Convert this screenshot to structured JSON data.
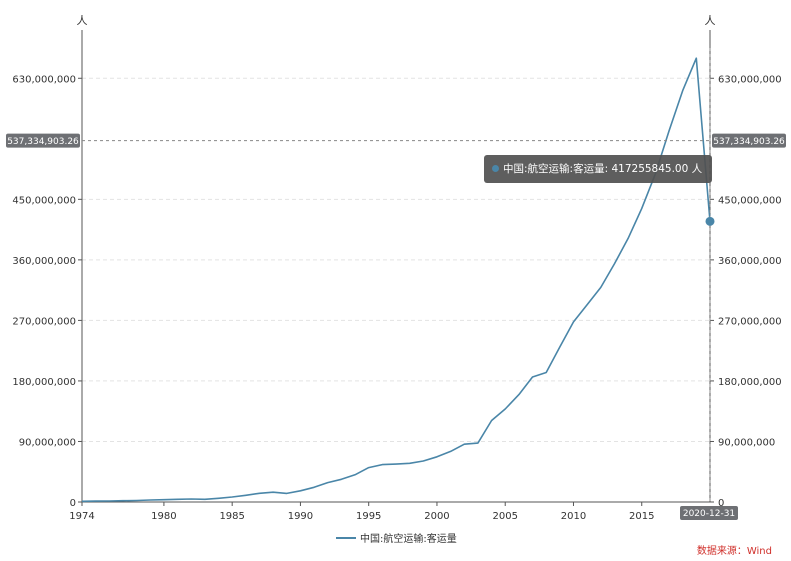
{
  "chart_data": {
    "type": "line",
    "y_unit_left": "人",
    "y_unit_right": "人",
    "ylim": [
      0,
      675000000
    ],
    "y_ticks": [
      0,
      90000000,
      180000000,
      270000000,
      360000000,
      450000000,
      630000000
    ],
    "y_tick_labels": [
      "0",
      "90,000,000",
      "180,000,000",
      "270,000,000",
      "360,000,000",
      "450,000,000",
      "630,000,000"
    ],
    "x_tick_labels": [
      "1974",
      "1980",
      "1985",
      "1990",
      "1995",
      "2000",
      "2005",
      "2010",
      "2015"
    ],
    "x_tick_values": [
      1974,
      1980,
      1985,
      1990,
      1995,
      2000,
      2005,
      2010,
      2015
    ],
    "xlim": [
      1974,
      2020
    ],
    "crosshair_value": 537334903.26,
    "crosshair_label": "537,334,903.26",
    "x_pointer_label": "2020-12-31",
    "grid": true,
    "legend_position": "bottom-center",
    "series": [
      {
        "name": "中国:航空运输:客运量",
        "color": "#4a86a8",
        "x": [
          1974,
          1975,
          1976,
          1977,
          1978,
          1979,
          1980,
          1981,
          1982,
          1983,
          1984,
          1985,
          1986,
          1987,
          1988,
          1989,
          1990,
          1991,
          1992,
          1993,
          1994,
          1995,
          1996,
          1997,
          1998,
          1999,
          2000,
          2001,
          2002,
          2003,
          2004,
          2005,
          2006,
          2007,
          2008,
          2009,
          2010,
          2011,
          2012,
          2013,
          2014,
          2015,
          2016,
          2017,
          2018,
          2019,
          2020
        ],
        "values": [
          1000000,
          1400000,
          1500000,
          1900000,
          2300000,
          3000000,
          3400000,
          4000000,
          4500000,
          4000000,
          5500000,
          7500000,
          10000000,
          13000000,
          14500000,
          12800000,
          16600000,
          21800000,
          28900000,
          33800000,
          40400000,
          51200000,
          55600000,
          56300000,
          57600000,
          60900000,
          67200000,
          75200000,
          85900000,
          87600000,
          121200000,
          138300000,
          159700000,
          185800000,
          192500000,
          230500000,
          267700000,
          293200000,
          319100000,
          354000000,
          391900000,
          436200000,
          487900000,
          551600000,
          611700000,
          659900000,
          417255845
        ]
      }
    ],
    "tooltip": {
      "series_name": "中国:航空运输:客运量",
      "value_text": "417255845.00",
      "unit": "人"
    },
    "source_text": "数据来源：Wind"
  }
}
